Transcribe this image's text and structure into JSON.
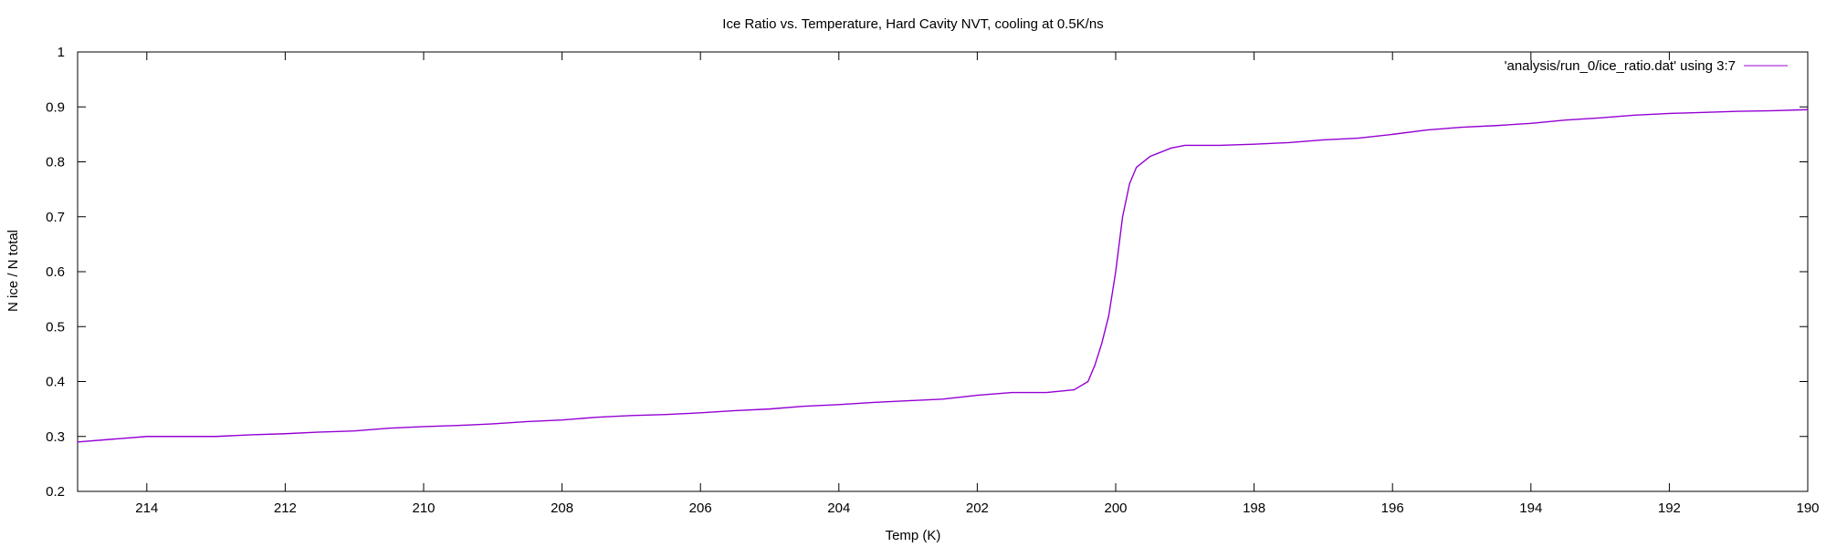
{
  "chart_data": {
    "type": "line",
    "title": "Ice Ratio vs. Temperature, Hard Cavity NVT, cooling at 0.5K/ns",
    "xlabel": "Temp (K)",
    "ylabel": "N ice / N total",
    "xlim": [
      215,
      190
    ],
    "ylim": [
      0.2,
      1.0
    ],
    "x_reversed": true,
    "x_ticks": [
      214,
      212,
      210,
      208,
      206,
      204,
      202,
      200,
      198,
      196,
      194,
      192,
      190
    ],
    "y_ticks": [
      0.2,
      0.3,
      0.4,
      0.5,
      0.6,
      0.7,
      0.8,
      0.9,
      1
    ],
    "grid": false,
    "legend_position": "top-right",
    "series": [
      {
        "name": "'analysis/run_0/ice_ratio.dat' using 3:7",
        "color": "#9400d3",
        "x": [
          215.0,
          214.5,
          214.0,
          213.5,
          213.0,
          212.5,
          212.0,
          211.5,
          211.0,
          210.5,
          210.0,
          209.5,
          209.0,
          208.5,
          208.0,
          207.5,
          207.0,
          206.5,
          206.0,
          205.5,
          205.0,
          204.5,
          204.0,
          203.5,
          203.0,
          202.5,
          202.0,
          201.5,
          201.0,
          200.6,
          200.4,
          200.3,
          200.2,
          200.1,
          200.0,
          199.9,
          199.8,
          199.7,
          199.5,
          199.2,
          199.0,
          198.5,
          198.0,
          197.5,
          197.0,
          196.5,
          196.0,
          195.5,
          195.0,
          194.5,
          194.0,
          193.5,
          193.0,
          192.5,
          192.0,
          191.5,
          191.0,
          190.5,
          190.0
        ],
        "y": [
          0.29,
          0.295,
          0.3,
          0.3,
          0.3,
          0.303,
          0.305,
          0.308,
          0.31,
          0.315,
          0.318,
          0.32,
          0.323,
          0.327,
          0.33,
          0.335,
          0.338,
          0.34,
          0.343,
          0.347,
          0.35,
          0.355,
          0.358,
          0.362,
          0.365,
          0.368,
          0.375,
          0.38,
          0.38,
          0.385,
          0.4,
          0.43,
          0.47,
          0.52,
          0.6,
          0.7,
          0.76,
          0.79,
          0.81,
          0.825,
          0.83,
          0.83,
          0.832,
          0.835,
          0.84,
          0.843,
          0.85,
          0.858,
          0.863,
          0.866,
          0.87,
          0.876,
          0.88,
          0.885,
          0.888,
          0.89,
          0.892,
          0.893,
          0.895
        ]
      }
    ]
  }
}
